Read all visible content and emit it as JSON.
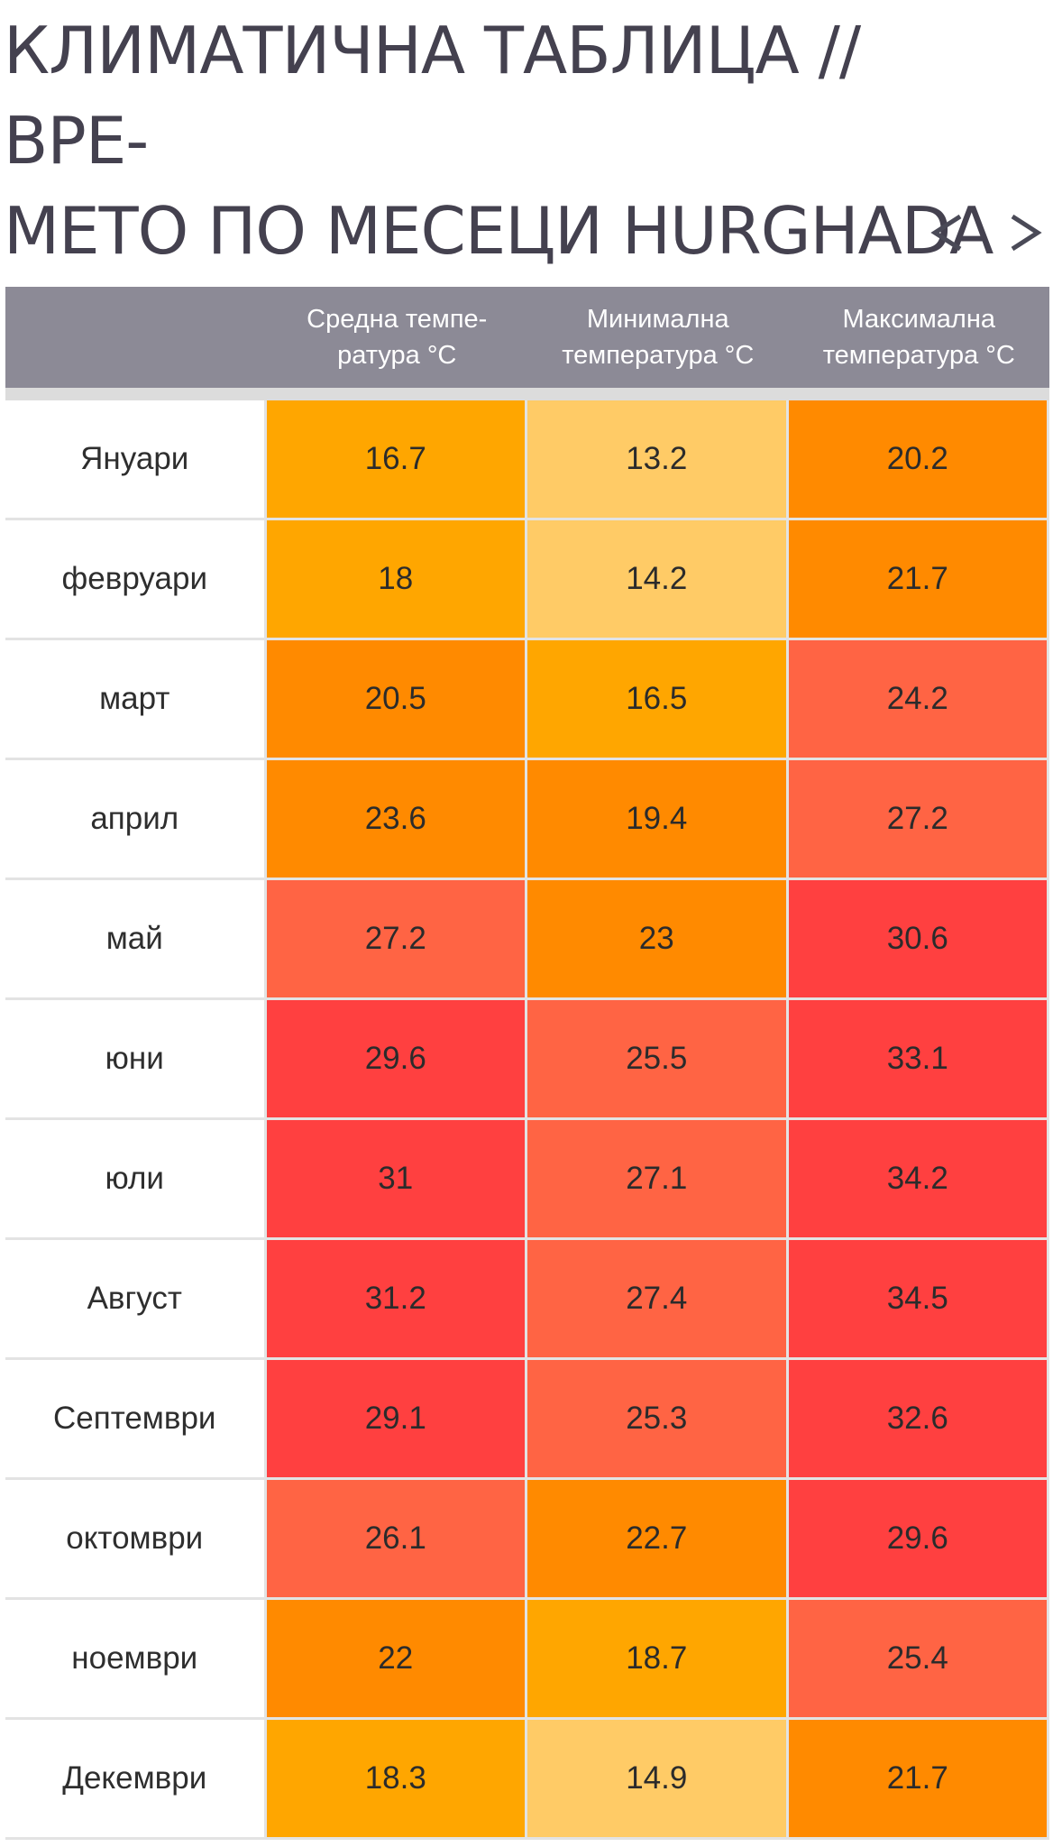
{
  "page": {
    "title": "КЛИМАТИЧНА ТАБЛИЦА // ВРЕ-МЕТО ПО МЕСЕЦИ HURGHADA",
    "title_line1": "КЛИМАТИЧНА ТАБЛИЦА // ВРЕ-",
    "title_line2": "МЕТО ПО МЕСЕЦИ HURGHADA"
  },
  "pager": {
    "prev_icon": "chevron-left-icon",
    "next_icon": "chevron-right-icon",
    "color": "#4a4a57"
  },
  "table": {
    "headers": {
      "month": "",
      "avg_line1": "Средна темпе-",
      "avg_line2": "ратура °C",
      "min_line1": "Минимална",
      "min_line2": "температура °C",
      "max_line1": "Максимална",
      "max_line2": "температура °C"
    },
    "colors": {
      "header_bg": "#8c8a96",
      "pale_orange": "#ffcb66",
      "amber": "#ffa600",
      "orange": "#ff8a00",
      "coral": "#ff6444",
      "red": "#ff4040"
    },
    "rows": [
      {
        "month": "Януари",
        "avg": "16.7",
        "min": "13.2",
        "max": "20.2",
        "avg_color": "#ffa600",
        "min_color": "#ffcb66",
        "max_color": "#ff8a00"
      },
      {
        "month": "февруари",
        "avg": "18",
        "min": "14.2",
        "max": "21.7",
        "avg_color": "#ffa600",
        "min_color": "#ffcb66",
        "max_color": "#ff8a00"
      },
      {
        "month": "март",
        "avg": "20.5",
        "min": "16.5",
        "max": "24.2",
        "avg_color": "#ff8a00",
        "min_color": "#ffa600",
        "max_color": "#ff6444"
      },
      {
        "month": "април",
        "avg": "23.6",
        "min": "19.4",
        "max": "27.2",
        "avg_color": "#ff8a00",
        "min_color": "#ff8a00",
        "max_color": "#ff6444"
      },
      {
        "month": "май",
        "avg": "27.2",
        "min": "23",
        "max": "30.6",
        "avg_color": "#ff6444",
        "min_color": "#ff8a00",
        "max_color": "#ff4040"
      },
      {
        "month": "юни",
        "avg": "29.6",
        "min": "25.5",
        "max": "33.1",
        "avg_color": "#ff4040",
        "min_color": "#ff6444",
        "max_color": "#ff4040"
      },
      {
        "month": "юли",
        "avg": "31",
        "min": "27.1",
        "max": "34.2",
        "avg_color": "#ff4040",
        "min_color": "#ff6444",
        "max_color": "#ff4040"
      },
      {
        "month": "Август",
        "avg": "31.2",
        "min": "27.4",
        "max": "34.5",
        "avg_color": "#ff4040",
        "min_color": "#ff6444",
        "max_color": "#ff4040"
      },
      {
        "month": "Септември",
        "avg": "29.1",
        "min": "25.3",
        "max": "32.6",
        "avg_color": "#ff4040",
        "min_color": "#ff6444",
        "max_color": "#ff4040"
      },
      {
        "month": "октомври",
        "avg": "26.1",
        "min": "22.7",
        "max": "29.6",
        "avg_color": "#ff6444",
        "min_color": "#ff8a00",
        "max_color": "#ff4040"
      },
      {
        "month": "ноември",
        "avg": "22",
        "min": "18.7",
        "max": "25.4",
        "avg_color": "#ff8a00",
        "min_color": "#ffa600",
        "max_color": "#ff6444"
      },
      {
        "month": "Декември",
        "avg": "18.3",
        "min": "14.9",
        "max": "21.7",
        "avg_color": "#ffa600",
        "min_color": "#ffcb66",
        "max_color": "#ff8a00"
      }
    ]
  }
}
